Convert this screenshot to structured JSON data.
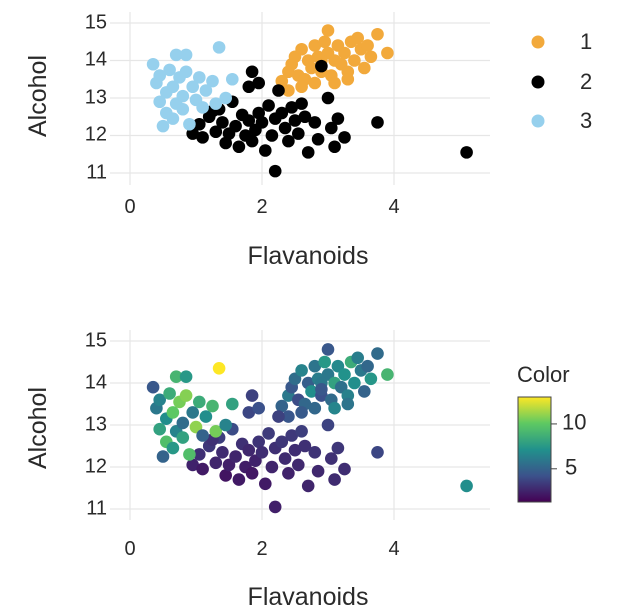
{
  "chart_data": [
    {
      "type": "scatter",
      "xlabel": "Flavanoids",
      "ylabel": "Alcohol",
      "xlim": [
        -0.1,
        5.4
      ],
      "ylim": [
        10.85,
        15.15
      ],
      "xticks": [
        "0",
        "2",
        "4"
      ],
      "yticks": [
        "11",
        "12",
        "13",
        "14",
        "15"
      ],
      "grid": true,
      "legend_placement": "right",
      "series": [
        {
          "name": "1",
          "color": "#f2a93b",
          "points": [
            [
              2.3,
              13.45
            ],
            [
              2.4,
              13.7
            ],
            [
              2.45,
              13.9
            ],
            [
              2.5,
              14.1
            ],
            [
              2.55,
              13.6
            ],
            [
              2.6,
              14.3
            ],
            [
              2.65,
              13.5
            ],
            [
              2.7,
              14.0
            ],
            [
              2.75,
              13.8
            ],
            [
              2.8,
              14.4
            ],
            [
              2.85,
              14.1
            ],
            [
              2.9,
              13.7
            ],
            [
              2.95,
              14.5
            ],
            [
              3.0,
              14.8
            ],
            [
              3.0,
              14.2
            ],
            [
              3.05,
              13.6
            ],
            [
              3.1,
              14.0
            ],
            [
              3.15,
              14.4
            ],
            [
              3.2,
              13.9
            ],
            [
              3.25,
              14.2
            ],
            [
              3.3,
              13.7
            ],
            [
              3.35,
              14.5
            ],
            [
              3.4,
              14.0
            ],
            [
              3.5,
              14.3
            ],
            [
              3.55,
              13.8
            ],
            [
              3.65,
              14.1
            ],
            [
              3.75,
              14.7
            ],
            [
              3.9,
              14.2
            ],
            [
              2.6,
              13.3
            ],
            [
              2.8,
              13.4
            ],
            [
              3.1,
              13.4
            ],
            [
              3.3,
              13.5
            ],
            [
              2.4,
              13.2
            ],
            [
              3.45,
              14.6
            ],
            [
              3.6,
              14.4
            ],
            [
              2.9,
              14.0
            ]
          ]
        },
        {
          "name": "2",
          "color": "#000000",
          "points": [
            [
              0.95,
              12.05
            ],
            [
              1.05,
              12.3
            ],
            [
              1.1,
              11.95
            ],
            [
              1.2,
              12.5
            ],
            [
              1.3,
              12.1
            ],
            [
              1.35,
              12.7
            ],
            [
              1.4,
              12.35
            ],
            [
              1.45,
              11.8
            ],
            [
              1.5,
              12.05
            ],
            [
              1.55,
              12.9
            ],
            [
              1.6,
              12.25
            ],
            [
              1.65,
              11.7
            ],
            [
              1.7,
              12.55
            ],
            [
              1.75,
              12.0
            ],
            [
              1.8,
              13.3
            ],
            [
              1.8,
              12.4
            ],
            [
              1.85,
              11.85
            ],
            [
              1.9,
              12.15
            ],
            [
              1.95,
              12.6
            ],
            [
              2.0,
              12.35
            ],
            [
              2.05,
              11.6
            ],
            [
              2.1,
              12.8
            ],
            [
              2.15,
              12.0
            ],
            [
              2.2,
              11.05
            ],
            [
              2.2,
              12.45
            ],
            [
              2.25,
              13.2
            ],
            [
              2.3,
              12.6
            ],
            [
              2.35,
              12.2
            ],
            [
              2.4,
              11.85
            ],
            [
              2.45,
              12.75
            ],
            [
              2.5,
              12.4
            ],
            [
              2.55,
              12.05
            ],
            [
              2.6,
              12.85
            ],
            [
              2.65,
              12.5
            ],
            [
              2.7,
              11.55
            ],
            [
              2.8,
              12.35
            ],
            [
              2.85,
              11.9
            ],
            [
              2.9,
              13.85
            ],
            [
              3.0,
              13.0
            ],
            [
              3.05,
              12.2
            ],
            [
              3.1,
              11.7
            ],
            [
              3.15,
              12.45
            ],
            [
              3.25,
              11.95
            ],
            [
              3.75,
              12.35
            ],
            [
              5.1,
              11.55
            ],
            [
              1.85,
              13.7
            ],
            [
              1.95,
              13.4
            ],
            [
              1.25,
              12.65
            ]
          ]
        },
        {
          "name": "3",
          "color": "#96d0ed",
          "points": [
            [
              0.35,
              13.9
            ],
            [
              0.4,
              13.4
            ],
            [
              0.45,
              12.9
            ],
            [
              0.45,
              13.6
            ],
            [
              0.5,
              12.25
            ],
            [
              0.55,
              13.15
            ],
            [
              0.55,
              12.6
            ],
            [
              0.6,
              13.75
            ],
            [
              0.65,
              12.45
            ],
            [
              0.65,
              13.3
            ],
            [
              0.7,
              12.85
            ],
            [
              0.7,
              14.15
            ],
            [
              0.75,
              13.55
            ],
            [
              0.8,
              13.05
            ],
            [
              0.8,
              12.7
            ],
            [
              0.85,
              14.15
            ],
            [
              0.85,
              13.7
            ],
            [
              0.9,
              12.3
            ],
            [
              0.95,
              13.3
            ],
            [
              1.0,
              12.95
            ],
            [
              1.05,
              13.55
            ],
            [
              1.1,
              12.75
            ],
            [
              1.15,
              13.2
            ],
            [
              1.25,
              13.45
            ],
            [
              1.3,
              12.85
            ],
            [
              1.35,
              14.35
            ],
            [
              1.45,
              13.0
            ],
            [
              1.55,
              13.5
            ]
          ]
        }
      ]
    },
    {
      "type": "scatter",
      "xlabel": "Flavanoids",
      "ylabel": "Alcohol",
      "xlim": [
        -0.1,
        5.4
      ],
      "ylim": [
        10.85,
        15.15
      ],
      "xticks": [
        "0",
        "2",
        "4"
      ],
      "yticks": [
        "11",
        "12",
        "13",
        "14",
        "15"
      ],
      "grid": true,
      "colorbar": {
        "title": "Color",
        "ticks": [
          "5",
          "10"
        ],
        "range": [
          1.3,
          13.0
        ],
        "colors": [
          "#440154",
          "#3b528b",
          "#21918c",
          "#5ec962",
          "#fde725"
        ]
      },
      "points": [
        [
          2.3,
          13.45,
          5.0
        ],
        [
          2.4,
          13.7,
          6.0
        ],
        [
          2.45,
          13.9,
          4.5
        ],
        [
          2.5,
          14.1,
          5.5
        ],
        [
          2.55,
          13.6,
          4.0
        ],
        [
          2.6,
          14.3,
          6.5
        ],
        [
          2.65,
          13.5,
          5.2
        ],
        [
          2.7,
          14.0,
          4.8
        ],
        [
          2.75,
          13.8,
          7.0
        ],
        [
          2.8,
          14.4,
          5.8
        ],
        [
          2.85,
          14.1,
          6.2
        ],
        [
          2.9,
          13.7,
          4.2
        ],
        [
          2.95,
          14.5,
          7.5
        ],
        [
          3.0,
          14.8,
          4.5
        ],
        [
          3.0,
          14.2,
          6.0
        ],
        [
          3.05,
          13.6,
          5.4
        ],
        [
          3.1,
          14.0,
          8.0
        ],
        [
          3.15,
          14.4,
          6.8
        ],
        [
          3.2,
          13.9,
          5.6
        ],
        [
          3.25,
          14.2,
          7.2
        ],
        [
          3.3,
          13.7,
          6.4
        ],
        [
          3.35,
          14.5,
          8.5
        ],
        [
          3.4,
          14.0,
          7.0
        ],
        [
          3.5,
          14.3,
          6.0
        ],
        [
          3.55,
          13.8,
          5.0
        ],
        [
          3.65,
          14.1,
          7.4
        ],
        [
          3.75,
          14.7,
          5.4
        ],
        [
          3.9,
          14.2,
          9.0
        ],
        [
          2.6,
          13.3,
          4.6
        ],
        [
          2.8,
          13.4,
          5.2
        ],
        [
          3.1,
          13.4,
          6.6
        ],
        [
          3.3,
          13.5,
          5.8
        ],
        [
          2.4,
          13.2,
          4.4
        ],
        [
          3.45,
          14.6,
          6.2
        ],
        [
          3.6,
          14.4,
          5.2
        ],
        [
          2.9,
          14.0,
          6.0
        ],
        [
          0.95,
          12.05,
          2.5
        ],
        [
          1.05,
          12.3,
          3.0
        ],
        [
          1.1,
          11.95,
          2.2
        ],
        [
          1.2,
          12.5,
          3.2
        ],
        [
          1.3,
          12.1,
          2.6
        ],
        [
          1.35,
          12.7,
          3.5
        ],
        [
          1.4,
          12.35,
          2.8
        ],
        [
          1.45,
          11.8,
          2.0
        ],
        [
          1.5,
          12.05,
          2.4
        ],
        [
          1.55,
          12.9,
          4.0
        ],
        [
          1.6,
          12.25,
          2.6
        ],
        [
          1.65,
          11.7,
          2.2
        ],
        [
          1.7,
          12.55,
          3.0
        ],
        [
          1.75,
          12.0,
          2.3
        ],
        [
          1.8,
          13.3,
          3.8
        ],
        [
          1.8,
          12.4,
          2.7
        ],
        [
          1.85,
          11.85,
          2.1
        ],
        [
          1.9,
          12.15,
          2.5
        ],
        [
          1.95,
          12.6,
          3.1
        ],
        [
          2.0,
          12.35,
          2.9
        ],
        [
          2.05,
          11.6,
          2.2
        ],
        [
          2.1,
          12.8,
          3.4
        ],
        [
          2.15,
          12.0,
          2.6
        ],
        [
          2.2,
          11.05,
          2.4
        ],
        [
          2.2,
          12.45,
          3.0
        ],
        [
          2.25,
          13.2,
          3.6
        ],
        [
          2.3,
          12.6,
          3.2
        ],
        [
          2.35,
          12.2,
          2.8
        ],
        [
          2.4,
          11.85,
          2.5
        ],
        [
          2.45,
          12.75,
          3.3
        ],
        [
          2.5,
          12.4,
          2.9
        ],
        [
          2.55,
          12.05,
          2.7
        ],
        [
          2.6,
          12.85,
          3.5
        ],
        [
          2.65,
          12.5,
          3.0
        ],
        [
          2.7,
          11.55,
          2.6
        ],
        [
          2.8,
          12.35,
          3.1
        ],
        [
          2.85,
          11.9,
          2.7
        ],
        [
          2.9,
          13.85,
          4.5
        ],
        [
          3.0,
          13.0,
          3.7
        ],
        [
          3.05,
          12.2,
          3.0
        ],
        [
          3.1,
          11.7,
          2.8
        ],
        [
          3.15,
          12.45,
          3.2
        ],
        [
          3.25,
          11.95,
          2.9
        ],
        [
          3.75,
          12.35,
          3.8
        ],
        [
          5.1,
          11.55,
          7.0
        ],
        [
          1.85,
          13.7,
          3.6
        ],
        [
          1.95,
          13.4,
          4.2
        ],
        [
          1.25,
          12.65,
          3.0
        ],
        [
          0.35,
          13.9,
          4.5
        ],
        [
          0.4,
          13.4,
          6.0
        ],
        [
          0.45,
          12.9,
          8.0
        ],
        [
          0.45,
          13.6,
          6.5
        ],
        [
          0.5,
          12.25,
          5.0
        ],
        [
          0.55,
          13.15,
          7.0
        ],
        [
          0.55,
          12.6,
          9.5
        ],
        [
          0.6,
          13.75,
          8.5
        ],
        [
          0.65,
          12.45,
          7.5
        ],
        [
          0.65,
          13.3,
          10.0
        ],
        [
          0.7,
          12.85,
          6.5
        ],
        [
          0.7,
          14.15,
          9.0
        ],
        [
          0.75,
          13.55,
          10.5
        ],
        [
          0.8,
          13.05,
          5.5
        ],
        [
          0.8,
          12.7,
          8.0
        ],
        [
          0.85,
          14.15,
          7.5
        ],
        [
          0.85,
          13.7,
          10.8
        ],
        [
          0.9,
          12.3,
          9.5
        ],
        [
          0.95,
          13.3,
          6.0
        ],
        [
          1.0,
          12.95,
          11.0
        ],
        [
          1.05,
          13.55,
          8.5
        ],
        [
          1.1,
          12.75,
          5.0
        ],
        [
          1.15,
          13.2,
          7.0
        ],
        [
          1.25,
          13.45,
          9.0
        ],
        [
          1.3,
          12.85,
          10.5
        ],
        [
          1.35,
          14.35,
          13.0
        ],
        [
          1.45,
          13.0,
          6.5
        ],
        [
          1.55,
          13.5,
          8.0
        ]
      ]
    }
  ]
}
